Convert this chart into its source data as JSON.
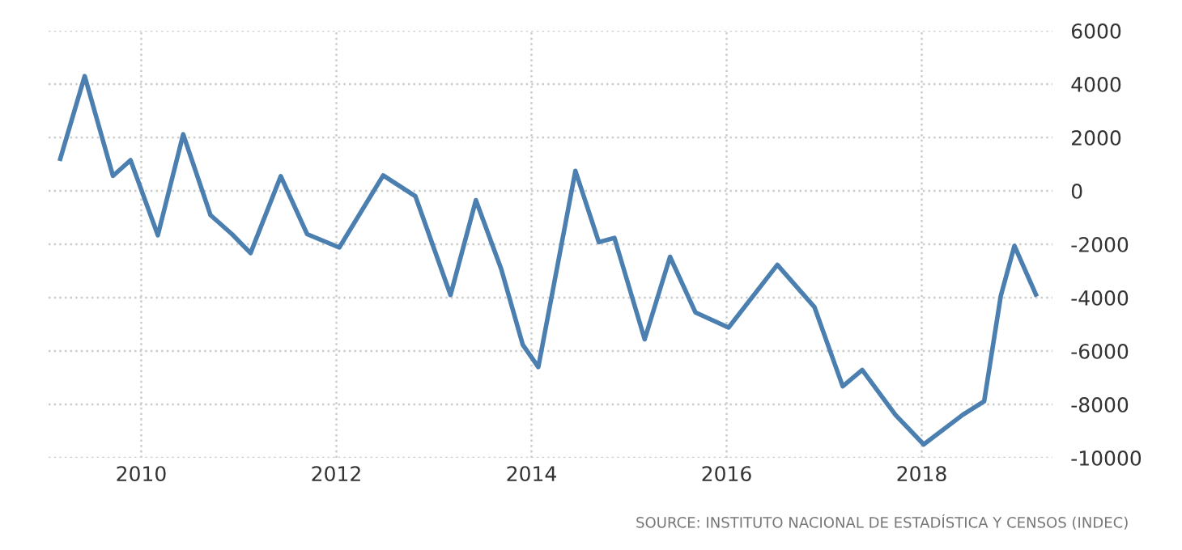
{
  "chart_data": {
    "type": "line",
    "x": [
      2009.17,
      2009.42,
      2009.71,
      2009.89,
      2010.17,
      2010.43,
      2010.71,
      2010.93,
      2011.12,
      2011.43,
      2011.7,
      2012.03,
      2012.48,
      2012.81,
      2013.17,
      2013.43,
      2013.69,
      2013.91,
      2014.07,
      2014.45,
      2014.69,
      2014.85,
      2015.16,
      2015.42,
      2015.68,
      2016.02,
      2016.52,
      2016.9,
      2017.19,
      2017.39,
      2017.73,
      2018.02,
      2018.42,
      2018.64,
      2018.81,
      2018.95,
      2019.17
    ],
    "series": [
      {
        "color": "#4a7fb0",
        "values": [
          1200,
          4300,
          560,
          1150,
          -1660,
          2120,
          -910,
          -1620,
          -2330,
          550,
          -1620,
          -2120,
          580,
          -200,
          -3900,
          -350,
          -2930,
          -5760,
          -6600,
          750,
          -1920,
          -1760,
          -5560,
          -2470,
          -4550,
          -5120,
          -2770,
          -4350,
          -7320,
          -6710,
          -8390,
          -9500,
          -8390,
          -7880,
          -3940,
          -2060,
          -3880
        ]
      }
    ],
    "xlim": [
      2009.05,
      2019.34
    ],
    "xticks": [
      2010,
      2012,
      2014,
      2016,
      2018
    ],
    "ylim": [
      -10000,
      6000
    ],
    "yticks": [
      -10000,
      -8000,
      -6000,
      -4000,
      -2000,
      0,
      2000,
      4000,
      6000
    ],
    "grid": true,
    "legend": false,
    "marker": "none",
    "line_style": "solid",
    "annotations": [
      "SOURCE: INSTITUTO NACIONAL DE ESTADÍSTICA Y CENSOS (INDEC)"
    ]
  }
}
